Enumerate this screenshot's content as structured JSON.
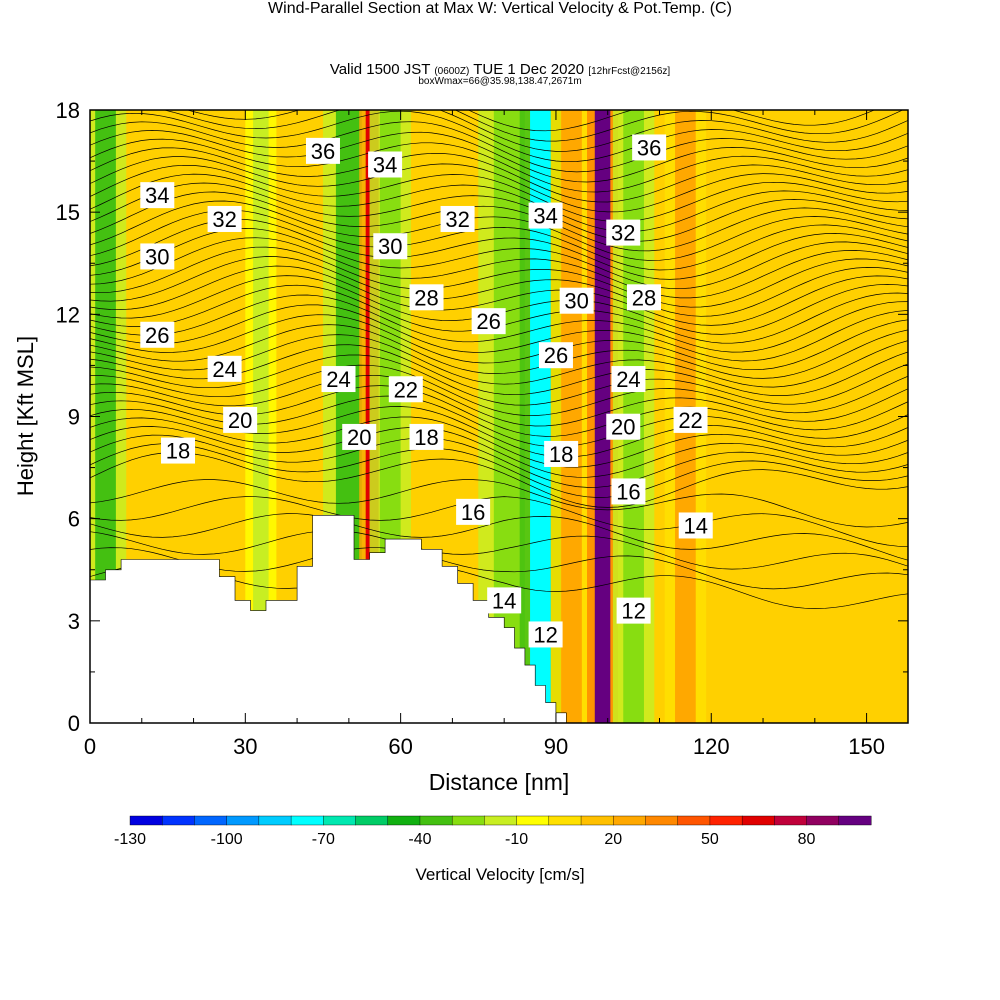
{
  "header": {
    "title": "Wind-Parallel Section at Max W: Vertical Velocity & Pot.Temp.",
    "title_copyright": "(C)",
    "valid_prefix": "Valid 1500 JST",
    "valid_utc": "(0600Z)",
    "valid_date": "TUE 1 Dec 2020",
    "valid_fcst": "[12hrFcst@2156z]",
    "box_line": "boxWmax=66@35.98,138.47,2671m"
  },
  "chart_data": {
    "type": "heatmap",
    "xlabel": "Distance [nm]",
    "ylabel": "Height [Kft MSL]",
    "xlim": [
      0,
      158
    ],
    "ylim": [
      0,
      18
    ],
    "x_ticks": [
      0,
      30,
      60,
      90,
      120,
      150
    ],
    "y_ticks": [
      0,
      3,
      6,
      9,
      12,
      15,
      18
    ],
    "colorbar": {
      "label": "Vertical Velocity [cm/s]",
      "min": -130,
      "max": 100,
      "step": 10,
      "tick_values": [
        -130,
        -100,
        -70,
        -40,
        -10,
        20,
        50,
        80
      ],
      "colors": [
        "#0000e0",
        "#0033ff",
        "#0066ff",
        "#0099ff",
        "#00ccff",
        "#00ffff",
        "#00e8b0",
        "#00cc66",
        "#11b011",
        "#44c011",
        "#88dd11",
        "#c8ee22",
        "#ffff00",
        "#ffe000",
        "#ffc000",
        "#ffa800",
        "#ff8800",
        "#ff5500",
        "#ff2200",
        "#e00000",
        "#c0003a",
        "#900060",
        "#650080"
      ]
    },
    "velocity_bands": [
      {
        "x": 3,
        "w": 4,
        "cm_s": -40
      },
      {
        "x": 33,
        "w": 3,
        "cm_s": -20
      },
      {
        "x": 50,
        "w": 5,
        "cm_s": -40
      },
      {
        "x": 54.5,
        "w": 2.5,
        "cm_s": 60
      },
      {
        "x": 58,
        "w": 4,
        "cm_s": -30
      },
      {
        "x": 81,
        "w": 6,
        "cm_s": -30
      },
      {
        "x": 87,
        "w": 4,
        "cm_s": -80
      },
      {
        "x": 93,
        "w": 4,
        "cm_s": 20
      },
      {
        "x": 99,
        "w": 3,
        "cm_s": 90
      },
      {
        "x": 105,
        "w": 4,
        "cm_s": -30
      },
      {
        "x": 115,
        "w": 4,
        "cm_s": 20
      }
    ],
    "terrain": [
      [
        0,
        4.2
      ],
      [
        3,
        4.2
      ],
      [
        3,
        4.5
      ],
      [
        6,
        4.5
      ],
      [
        6,
        4.8
      ],
      [
        25,
        4.8
      ],
      [
        25,
        4.3
      ],
      [
        28,
        4.3
      ],
      [
        28,
        3.6
      ],
      [
        31,
        3.6
      ],
      [
        31,
        3.3
      ],
      [
        34,
        3.3
      ],
      [
        34,
        3.6
      ],
      [
        40,
        3.6
      ],
      [
        40,
        4.6
      ],
      [
        43,
        4.6
      ],
      [
        43,
        6.1
      ],
      [
        51,
        6.1
      ],
      [
        51,
        4.8
      ],
      [
        54,
        4.8
      ],
      [
        54,
        5.0
      ],
      [
        57,
        5.0
      ],
      [
        57,
        5.4
      ],
      [
        64,
        5.4
      ],
      [
        64,
        5.1
      ],
      [
        68,
        5.1
      ],
      [
        68,
        4.6
      ],
      [
        71,
        4.6
      ],
      [
        71,
        4.1
      ],
      [
        74,
        4.1
      ],
      [
        74,
        3.6
      ],
      [
        77,
        3.6
      ],
      [
        77,
        3.1
      ],
      [
        80,
        3.1
      ],
      [
        80,
        2.8
      ],
      [
        82,
        2.8
      ],
      [
        82,
        2.2
      ],
      [
        84,
        2.2
      ],
      [
        84,
        1.7
      ],
      [
        86,
        1.7
      ],
      [
        86,
        1.1
      ],
      [
        88,
        1.1
      ],
      [
        88,
        0.6
      ],
      [
        90,
        0.6
      ],
      [
        90,
        0.3
      ],
      [
        92,
        0.3
      ],
      [
        92,
        0
      ]
    ],
    "isentropes": {
      "unit": "C",
      "levels": [
        12,
        14,
        16,
        18,
        20,
        22,
        24,
        26,
        28,
        30,
        32,
        34,
        36
      ],
      "labels": [
        {
          "text": "36",
          "x": 45,
          "y": 16.8
        },
        {
          "text": "34",
          "x": 13,
          "y": 15.5
        },
        {
          "text": "34",
          "x": 57,
          "y": 16.4
        },
        {
          "text": "36",
          "x": 108,
          "y": 16.9
        },
        {
          "text": "32",
          "x": 26,
          "y": 14.8
        },
        {
          "text": "32",
          "x": 71,
          "y": 14.8
        },
        {
          "text": "34",
          "x": 88,
          "y": 14.9
        },
        {
          "text": "32",
          "x": 103,
          "y": 14.4
        },
        {
          "text": "30",
          "x": 13,
          "y": 13.7
        },
        {
          "text": "30",
          "x": 58,
          "y": 14.0
        },
        {
          "text": "28",
          "x": 65,
          "y": 12.5
        },
        {
          "text": "30",
          "x": 94,
          "y": 12.4
        },
        {
          "text": "28",
          "x": 107,
          "y": 12.5
        },
        {
          "text": "26",
          "x": 13,
          "y": 11.4
        },
        {
          "text": "26",
          "x": 77,
          "y": 11.8
        },
        {
          "text": "26",
          "x": 90,
          "y": 10.8
        },
        {
          "text": "24",
          "x": 26,
          "y": 10.4
        },
        {
          "text": "24",
          "x": 48,
          "y": 10.1
        },
        {
          "text": "22",
          "x": 61,
          "y": 9.8
        },
        {
          "text": "24",
          "x": 104,
          "y": 10.1
        },
        {
          "text": "22",
          "x": 116,
          "y": 8.9
        },
        {
          "text": "20",
          "x": 29,
          "y": 8.9
        },
        {
          "text": "20",
          "x": 52,
          "y": 8.4
        },
        {
          "text": "18",
          "x": 65,
          "y": 8.4
        },
        {
          "text": "20",
          "x": 103,
          "y": 8.7
        },
        {
          "text": "18",
          "x": 17,
          "y": 8.0
        },
        {
          "text": "18",
          "x": 91,
          "y": 7.9
        },
        {
          "text": "16",
          "x": 74,
          "y": 6.2
        },
        {
          "text": "16",
          "x": 104,
          "y": 6.8
        },
        {
          "text": "14",
          "x": 117,
          "y": 5.8
        },
        {
          "text": "14",
          "x": 80,
          "y": 3.6
        },
        {
          "text": "12",
          "x": 88,
          "y": 2.6
        },
        {
          "text": "12",
          "x": 105,
          "y": 3.3
        }
      ]
    }
  }
}
